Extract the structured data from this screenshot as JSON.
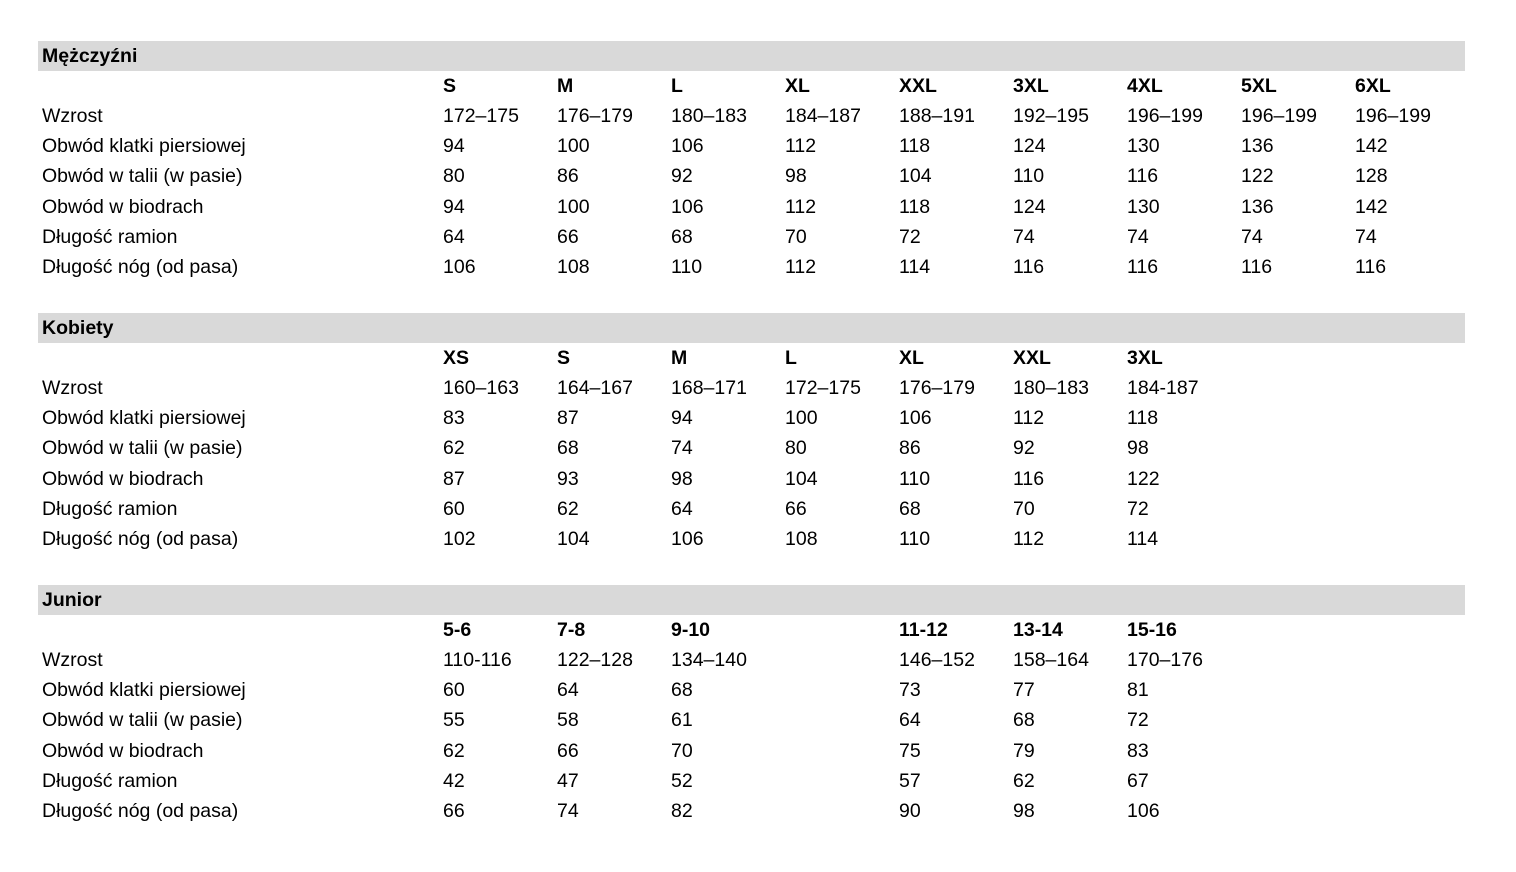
{
  "sections": [
    {
      "title": "Mężczyźni",
      "sizes": [
        "S",
        "M",
        "L",
        "XL",
        "XXL",
        "3XL",
        "4XL",
        "5XL",
        "6XL"
      ],
      "rows": [
        {
          "label": "Wzrost",
          "values": [
            "172–175",
            "176–179",
            "180–183",
            "184–187",
            "188–191",
            "192–195",
            "196–199",
            "196–199",
            "196–199"
          ]
        },
        {
          "label": "Obwód klatki piersiowej",
          "values": [
            "94",
            "100",
            "106",
            "112",
            "118",
            "124",
            "130",
            "136",
            "142"
          ]
        },
        {
          "label": "Obwód w talii (w pasie)",
          "values": [
            "80",
            "86",
            "92",
            "98",
            "104",
            "110",
            "116",
            "122",
            "128"
          ]
        },
        {
          "label": "Obwód w biodrach",
          "values": [
            "94",
            "100",
            "106",
            "112",
            "118",
            "124",
            "130",
            "136",
            "142"
          ]
        },
        {
          "label": "Długość ramion",
          "values": [
            "64",
            "66",
            "68",
            "70",
            "72",
            "74",
            "74",
            "74",
            "74"
          ]
        },
        {
          "label": "Długość nóg (od pasa)",
          "values": [
            "106",
            "108",
            "110",
            "112",
            "114",
            "116",
            "116",
            "116",
            "116"
          ]
        }
      ]
    },
    {
      "title": "Kobiety",
      "sizes": [
        "XS",
        "S",
        "M",
        "L",
        "XL",
        "XXL",
        "3XL"
      ],
      "rows": [
        {
          "label": "Wzrost",
          "values": [
            "160–163",
            "164–167",
            "168–171",
            "172–175",
            "176–179",
            "180–183",
            "184-187"
          ]
        },
        {
          "label": "Obwód klatki piersiowej",
          "values": [
            "83",
            "87",
            "94",
            "100",
            "106",
            "112",
            "118"
          ]
        },
        {
          "label": "Obwód w talii (w pasie)",
          "values": [
            "62",
            "68",
            "74",
            "80",
            "86",
            "92",
            "98"
          ]
        },
        {
          "label": "Obwód w biodrach",
          "values": [
            "87",
            "93",
            "98",
            "104",
            "110",
            "116",
            "122"
          ]
        },
        {
          "label": "Długość ramion",
          "values": [
            "60",
            "62",
            "64",
            "66",
            "68",
            "70",
            "72"
          ]
        },
        {
          "label": "Długość nóg (od pasa)",
          "values": [
            "102",
            "104",
            "106",
            "108",
            "110",
            "112",
            "114"
          ]
        }
      ]
    },
    {
      "title": "Junior",
      "sizes": [
        "5-6",
        "7-8",
        "9-10",
        null,
        "11-12",
        "13-14",
        "15-16"
      ],
      "rows": [
        {
          "label": "Wzrost",
          "values": [
            "110-116",
            "122–128",
            "134–140",
            null,
            "146–152",
            "158–164",
            "170–176"
          ]
        },
        {
          "label": "Obwód klatki piersiowej",
          "values": [
            "60",
            "64",
            "68",
            null,
            "73",
            "77",
            "81"
          ]
        },
        {
          "label": "Obwód w talii (w pasie)",
          "values": [
            "55",
            "58",
            "61",
            null,
            "64",
            "68",
            "72"
          ]
        },
        {
          "label": "Obwód w biodrach",
          "values": [
            "62",
            "66",
            "70",
            null,
            "75",
            "79",
            "83"
          ]
        },
        {
          "label": "Długość ramion",
          "values": [
            "42",
            "47",
            "52",
            null,
            "57",
            "62",
            "67"
          ]
        },
        {
          "label": "Długość nóg (od pasa)",
          "values": [
            "66",
            "74",
            "82",
            null,
            "90",
            "98",
            "106"
          ]
        }
      ]
    }
  ]
}
